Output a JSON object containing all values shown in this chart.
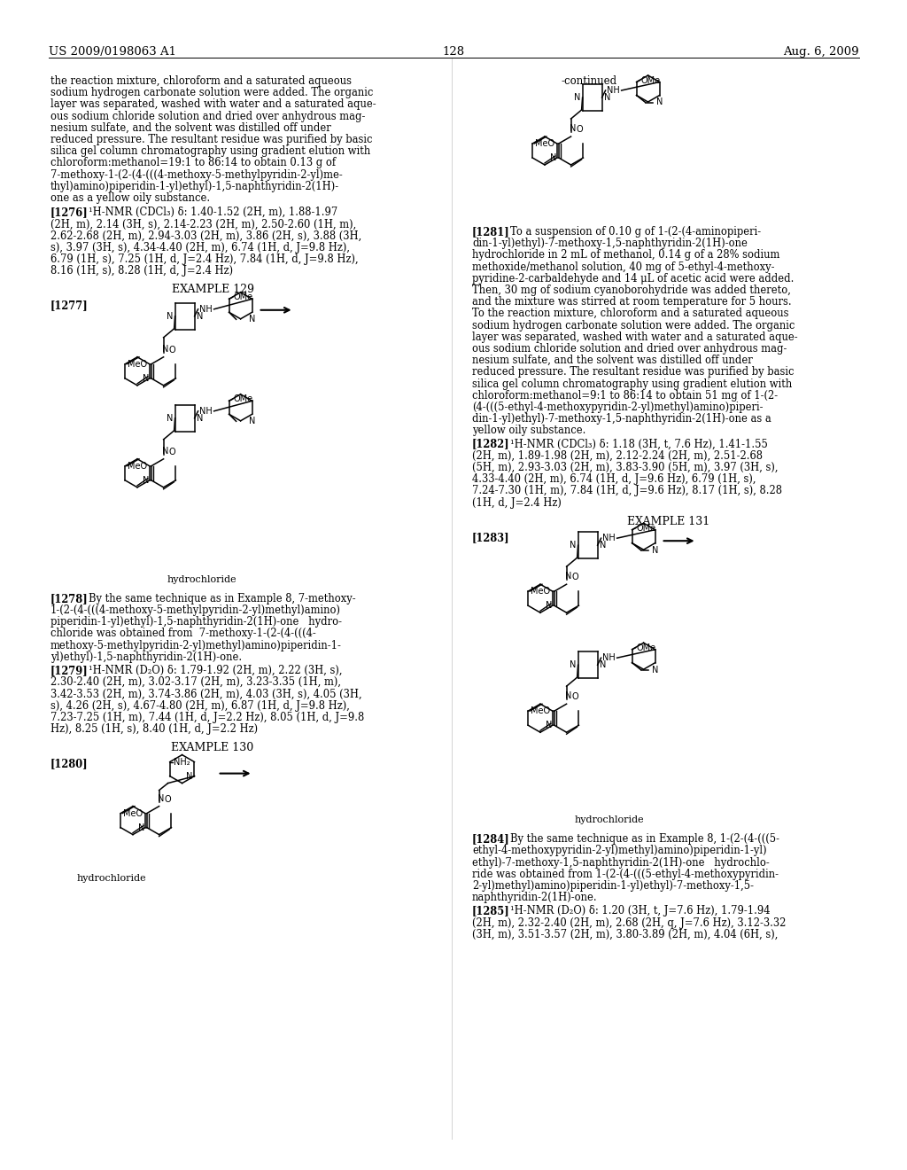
{
  "header_left": "US 2009/0198063 A1",
  "header_right": "Aug. 6, 2009",
  "page_number": "128",
  "background": "#ffffff",
  "text_color": "#000000"
}
